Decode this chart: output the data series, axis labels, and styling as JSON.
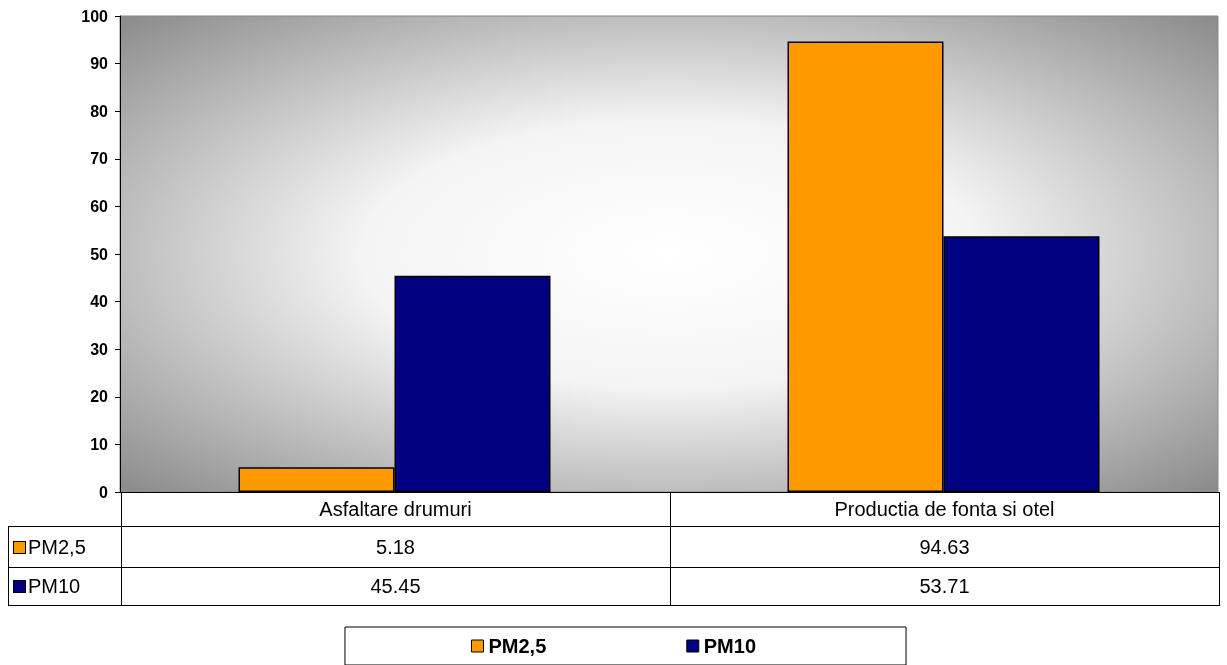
{
  "chart_data": {
    "type": "bar",
    "categories": [
      "Asfaltare drumuri",
      "Productia de fonta si otel"
    ],
    "series": [
      {
        "name": "PM2,5",
        "color": "#ff9900",
        "values": [
          5.18,
          94.63
        ]
      },
      {
        "name": "PM10",
        "color": "#000080",
        "values": [
          45.45,
          53.71
        ]
      }
    ],
    "ylim": [
      0,
      100
    ],
    "yticks": [
      0,
      10,
      20,
      30,
      40,
      50,
      60,
      70,
      80,
      90,
      100
    ],
    "data_labels": true,
    "legend": "bottom"
  }
}
